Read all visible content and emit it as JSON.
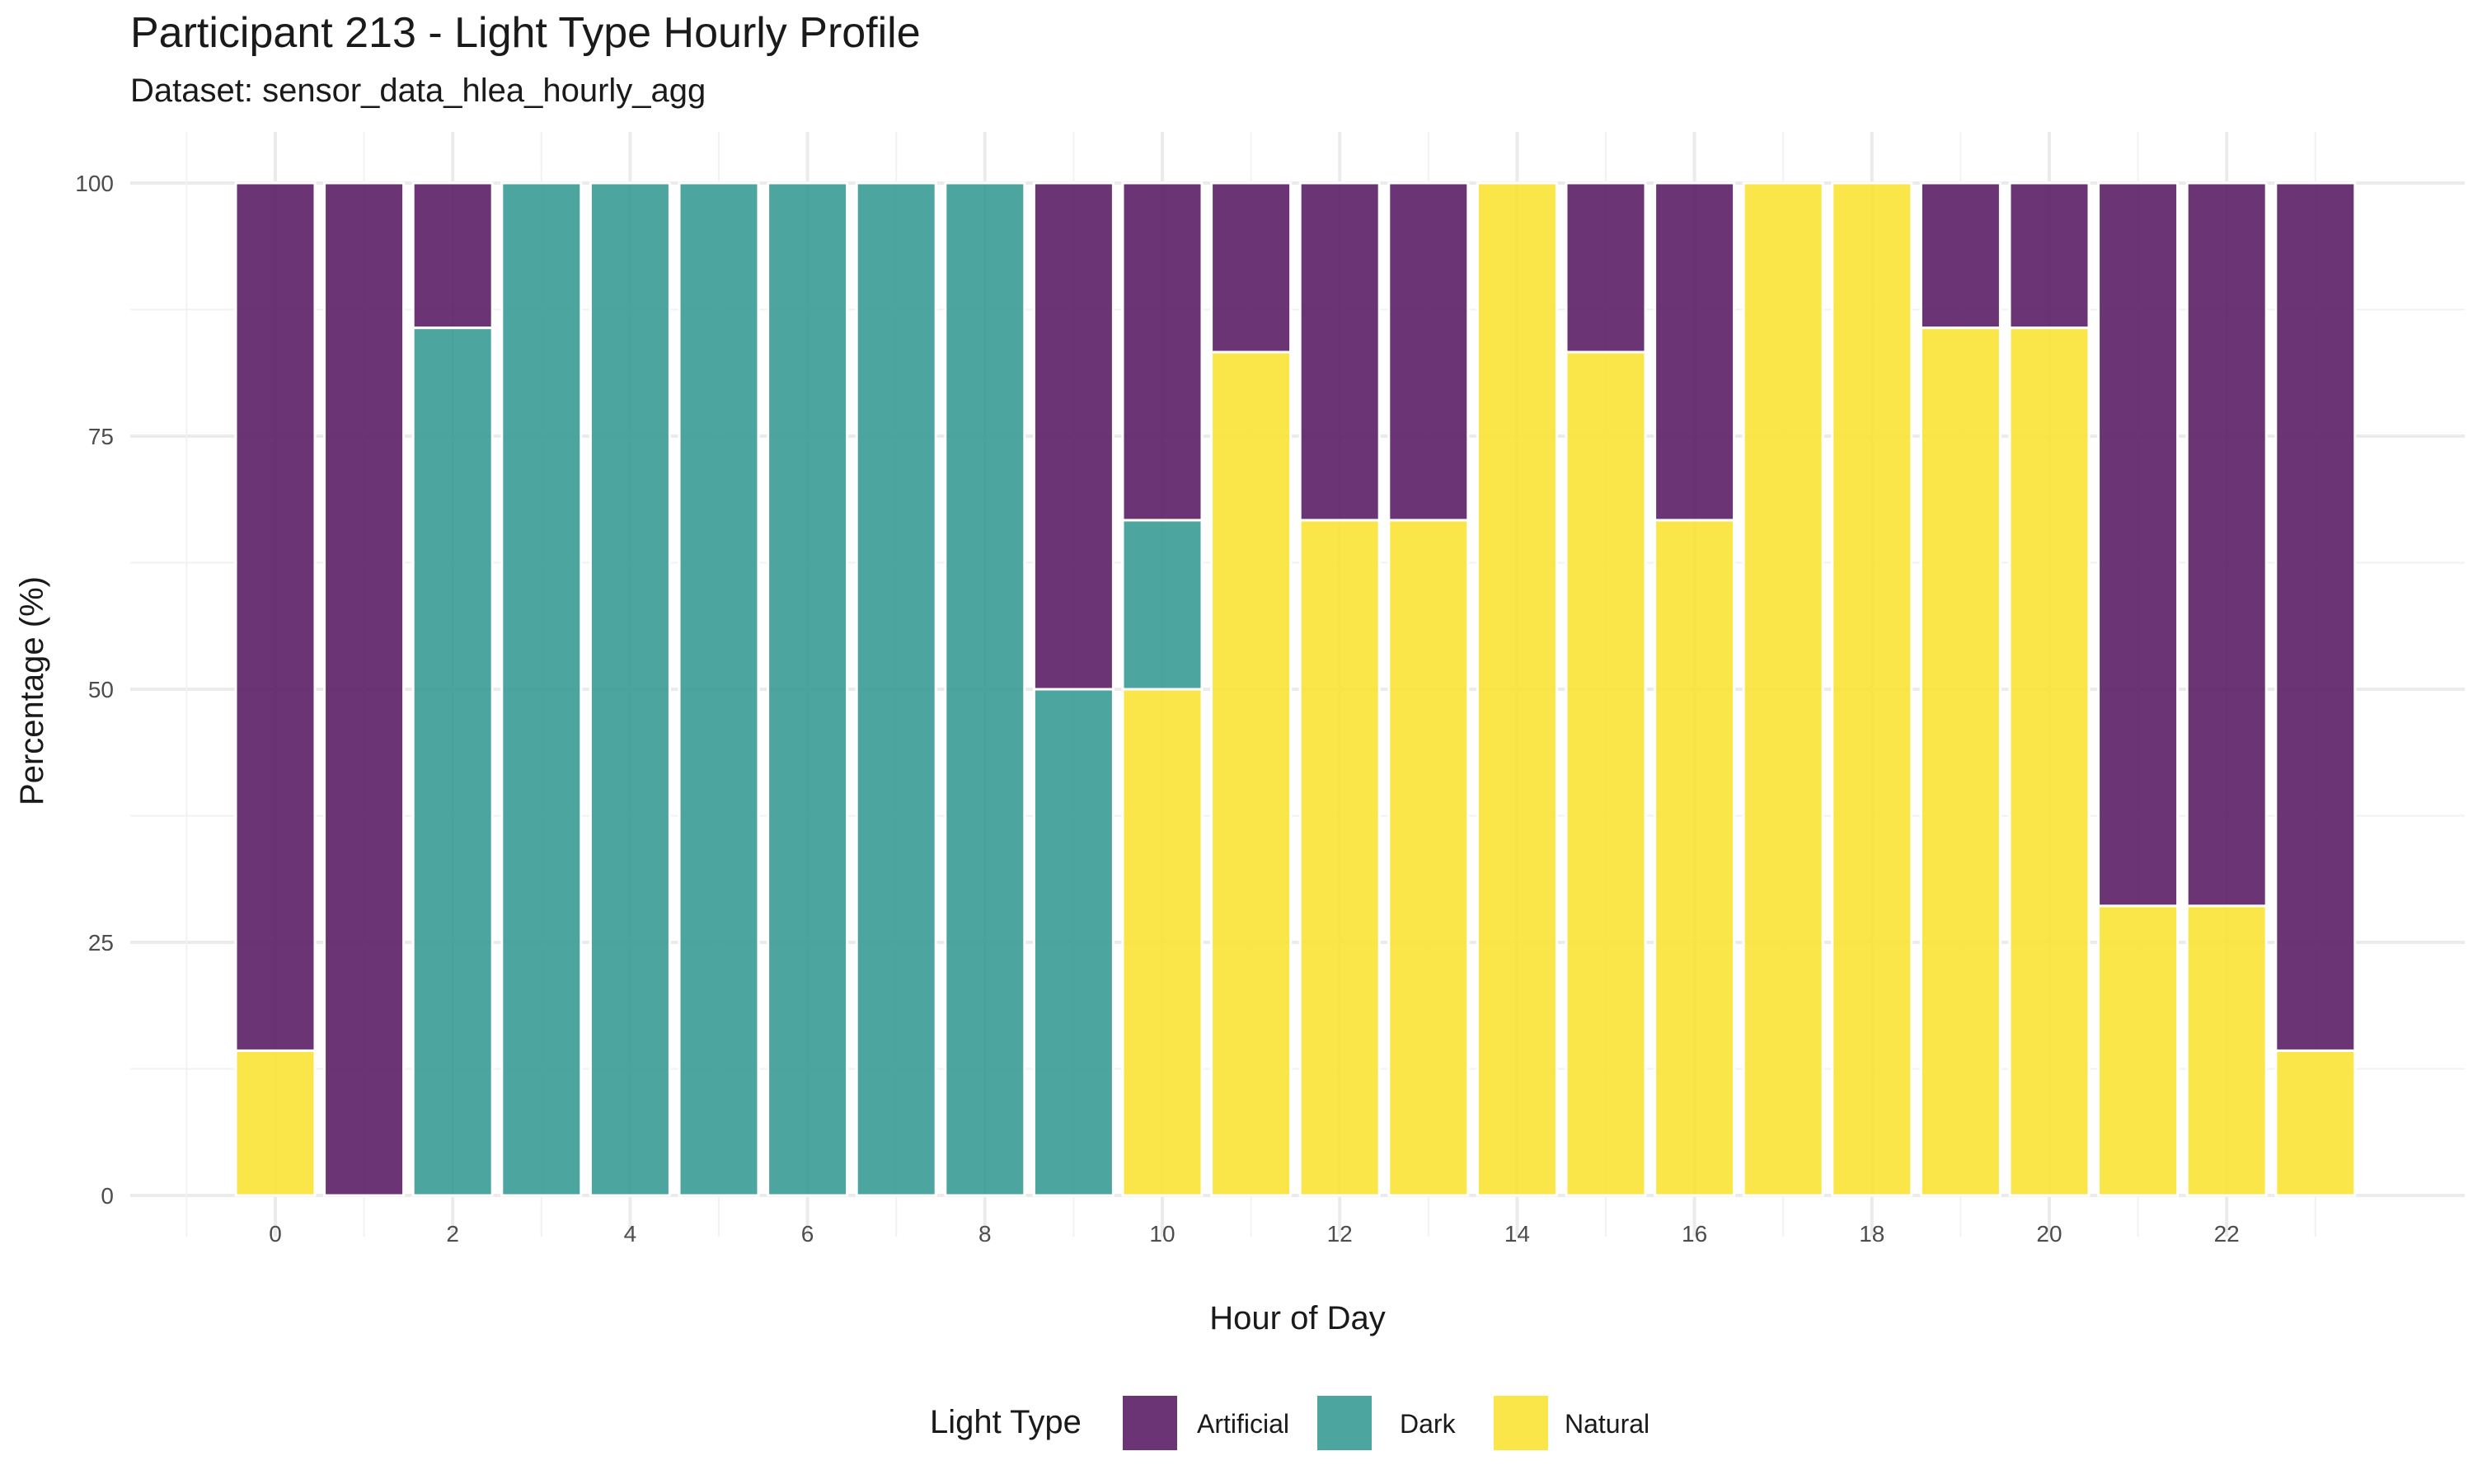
{
  "title": "Participant 213 - Light Type Hourly Profile",
  "subtitle": "Dataset: sensor_data_hlea_hourly_agg",
  "colors": {
    "Artificial": "#5b1f66",
    "Dark": "#3a9b96",
    "Natural": "#fae335",
    "grid": "#ebebeb",
    "background": "#ffffff"
  },
  "chart_data": {
    "type": "bar",
    "stacked": true,
    "title": "Participant 213 - Light Type Hourly Profile",
    "subtitle": "Dataset: sensor_data_hlea_hourly_agg",
    "xlabel": "Hour of Day",
    "ylabel": "Percentage (%)",
    "ylim": [
      0,
      100
    ],
    "xlim": [
      -1,
      24
    ],
    "yticks": [
      0,
      25,
      50,
      75,
      100
    ],
    "xticks": [
      0,
      2,
      4,
      6,
      8,
      10,
      12,
      14,
      16,
      18,
      20,
      22
    ],
    "grid": true,
    "categories": [
      0,
      1,
      2,
      3,
      4,
      5,
      6,
      7,
      8,
      9,
      10,
      11,
      12,
      13,
      14,
      15,
      16,
      17,
      18,
      19,
      20,
      21,
      22,
      23
    ],
    "stack_order_bottom_to_top": [
      "Natural",
      "Dark",
      "Artificial"
    ],
    "series": [
      {
        "name": "Artificial",
        "values": [
          85.7,
          100,
          14.3,
          0,
          0,
          0,
          0,
          0,
          0,
          50,
          33.3,
          16.7,
          33.3,
          33.3,
          0,
          16.7,
          33.3,
          0,
          0,
          14.3,
          14.3,
          71.4,
          71.4,
          85.7
        ]
      },
      {
        "name": "Dark",
        "values": [
          0,
          0,
          85.7,
          100,
          100,
          100,
          100,
          100,
          100,
          50,
          16.7,
          0,
          0,
          0,
          0,
          0,
          0,
          0,
          0,
          0,
          0,
          0,
          0,
          0
        ]
      },
      {
        "name": "Natural",
        "values": [
          14.3,
          0,
          0,
          0,
          0,
          0,
          0,
          0,
          0,
          0,
          50,
          83.3,
          66.7,
          66.7,
          100,
          83.3,
          66.7,
          100,
          100,
          85.7,
          85.7,
          28.6,
          28.6,
          14.3
        ]
      }
    ],
    "legend": {
      "title": "Light Type",
      "position": "bottom",
      "entries": [
        "Artificial",
        "Dark",
        "Natural"
      ]
    }
  }
}
